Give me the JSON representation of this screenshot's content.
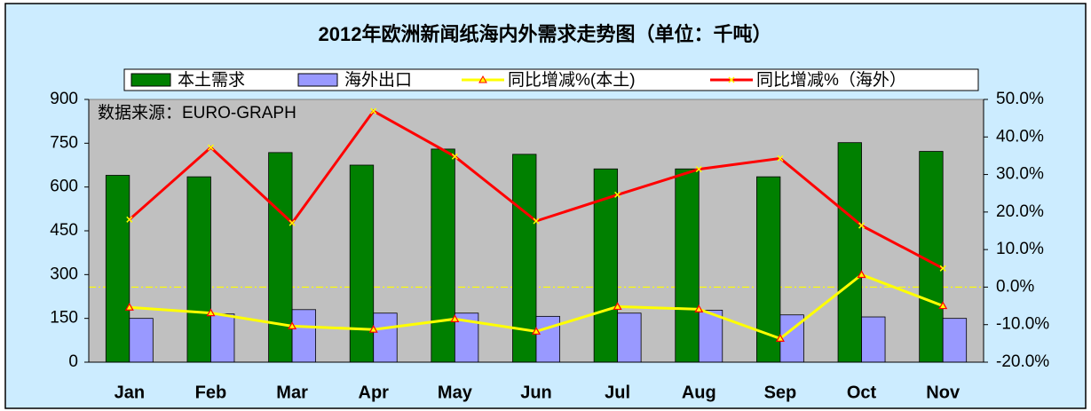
{
  "chart_data": {
    "type": "bar",
    "title": "2012年欧洲新闻纸海内外需求走势图（单位：千吨）",
    "annotation": "数据来源：EURO-GRAPH",
    "categories": [
      "Jan",
      "Feb",
      "Mar",
      "Apr",
      "May",
      "Jun",
      "Jul",
      "Aug",
      "Sep",
      "Oct",
      "Nov"
    ],
    "series": [
      {
        "name": "本土需求",
        "type": "bar",
        "color": "#008000",
        "values": [
          640,
          635,
          718,
          675,
          730,
          712,
          662,
          662,
          635,
          752,
          722
        ]
      },
      {
        "name": "海外出口",
        "type": "bar",
        "color": "#9999ff",
        "values": [
          150,
          165,
          180,
          168,
          168,
          157,
          168,
          178,
          162,
          155,
          150
        ]
      },
      {
        "name": "同比增减%(本土)",
        "type": "line",
        "axis": "y2",
        "color": "#ffff00",
        "values": [
          -5.4,
          -6.9,
          -10.4,
          -11.3,
          -8.5,
          -11.8,
          -5.2,
          -5.9,
          -13.7,
          3.3,
          -5.0
        ]
      },
      {
        "name": "同比增减%（海外）",
        "type": "line",
        "axis": "y2",
        "color": "#ff0000",
        "values": [
          18.0,
          37.2,
          17.1,
          46.9,
          34.8,
          17.6,
          24.6,
          31.4,
          34.3,
          16.4,
          5.0
        ]
      }
    ],
    "ylim": [
      0,
      900
    ],
    "yticks": [
      0,
      150,
      300,
      450,
      600,
      750,
      900
    ],
    "y2lim": [
      -20,
      50
    ],
    "y2ticks": [
      {
        "value": -20,
        "label": "-20.0%"
      },
      {
        "value": -10,
        "label": "-10.0%"
      },
      {
        "value": 0,
        "label": "0.0%"
      },
      {
        "value": 10,
        "label": "10.0%"
      },
      {
        "value": 20,
        "label": "20.0%"
      },
      {
        "value": 30,
        "label": "30.0%"
      },
      {
        "value": 40,
        "label": "40.0%"
      },
      {
        "value": 50,
        "label": "50.0%"
      }
    ],
    "legend": "top"
  }
}
